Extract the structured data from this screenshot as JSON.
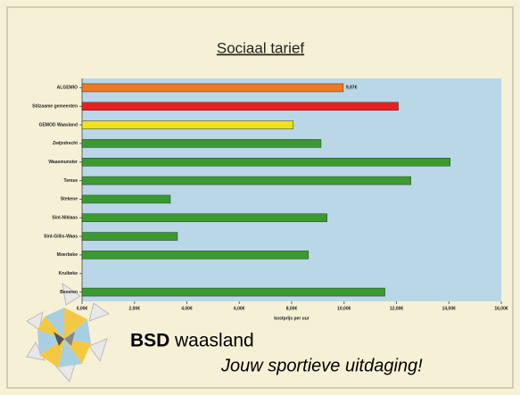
{
  "chart_data": {
    "type": "hbar",
    "title": "Sociaal tarief",
    "categories": [
      "ALGEMIO",
      "Stilzaame gemeenten",
      "GEMOD Waasland",
      "Zwijndrecht",
      "Waasmunster",
      "Temse",
      "Stekene",
      "Sint-Niklaas",
      "Sint-Gillis-Waas",
      "Moerbeke",
      "Kruibeke",
      "Beveren"
    ],
    "values": [
      9.97,
      12.07,
      8.06,
      9.12,
      14.05,
      12.55,
      3.37,
      9.35,
      3.64,
      8.64,
      null,
      11.56
    ],
    "value_labels": [
      "9,97€",
      null,
      null,
      null,
      null,
      null,
      null,
      null,
      null,
      null,
      null,
      null
    ],
    "colors": [
      "#f07820",
      "#e82020",
      "#f0e020",
      "#3a9a30",
      "#3a9a30",
      "#3a9a30",
      "#3a9a30",
      "#3a9a30",
      "#3a9a30",
      "#3a9a30",
      "#3a9a30",
      "#3a9a30"
    ],
    "xlabel": "kostprijs per uur",
    "xlim": [
      0,
      16
    ],
    "xticks": [
      {
        "value": 0,
        "label": "0,00€"
      },
      {
        "value": 2,
        "label": "2,00€"
      },
      {
        "value": 4,
        "label": "4,00€"
      },
      {
        "value": 6,
        "label": "6,00€"
      },
      {
        "value": 8,
        "label": "8,00€"
      },
      {
        "value": 10,
        "label": "10,00€"
      },
      {
        "value": 12,
        "label": "12,00€"
      },
      {
        "value": 14,
        "label": "14,00€"
      },
      {
        "value": 16,
        "label": "16,00€"
      }
    ]
  },
  "logo": {
    "brand_bold": "BSD",
    "brand_rest": "waasland",
    "slogan": "Jouw sportieve uitdaging!"
  }
}
